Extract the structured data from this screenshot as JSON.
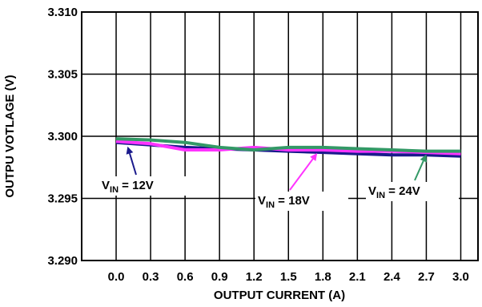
{
  "chart_data": {
    "type": "line",
    "title": "",
    "xlabel": "OUTPUT CURRENT (A)",
    "ylabel": "OUTPU VOTLAGE (V)",
    "x_ticks": [
      "0.0",
      "0.3",
      "0.6",
      "0.9",
      "1.2",
      "1.5",
      "1.8",
      "2.1",
      "2.4",
      "2.7",
      "3.0"
    ],
    "y_ticks": [
      "3.290",
      "3.295",
      "3.300",
      "3.305",
      "3.310"
    ],
    "xlim": [
      -0.3,
      3.15
    ],
    "ylim": [
      3.29,
      3.31
    ],
    "grid": true,
    "series": [
      {
        "name": "VIN = 12V",
        "color": "#1a1a8c",
        "x": [
          0.0,
          0.3,
          0.6,
          0.9,
          1.2,
          1.5,
          1.8,
          2.1,
          2.4,
          2.7,
          3.0
        ],
        "y": [
          3.2995,
          3.2993,
          3.2991,
          3.299,
          3.2989,
          3.2988,
          3.2987,
          3.2986,
          3.2985,
          3.2985,
          3.2984
        ]
      },
      {
        "name": "VIN = 18V",
        "color": "#ff33ff",
        "x": [
          0.0,
          0.3,
          0.6,
          0.9,
          1.2,
          1.5,
          1.8,
          2.1,
          2.4,
          2.7,
          3.0
        ],
        "y": [
          3.2996,
          3.2994,
          3.2989,
          3.2989,
          3.2991,
          3.2989,
          3.2989,
          3.2988,
          3.2988,
          3.2987,
          3.2986
        ]
      },
      {
        "name": "VIN = 24V",
        "color": "#339966",
        "x": [
          0.0,
          0.3,
          0.6,
          0.9,
          1.2,
          1.5,
          1.8,
          2.1,
          2.4,
          2.7,
          3.0
        ],
        "y": [
          3.2998,
          3.2997,
          3.2995,
          3.2991,
          3.2989,
          3.2991,
          3.2991,
          3.299,
          3.2989,
          3.2988,
          3.2988
        ]
      }
    ],
    "annotations": [
      {
        "prefix": "V",
        "sub": "IN",
        "suffix": " = 12V",
        "series": 0,
        "target_x": 0.1
      },
      {
        "prefix": "V",
        "sub": "IN",
        "suffix": " = 18V",
        "series": 1,
        "target_x": 1.75
      },
      {
        "prefix": "V",
        "sub": "IN",
        "suffix": " = 24V",
        "series": 2,
        "target_x": 2.7
      }
    ]
  }
}
